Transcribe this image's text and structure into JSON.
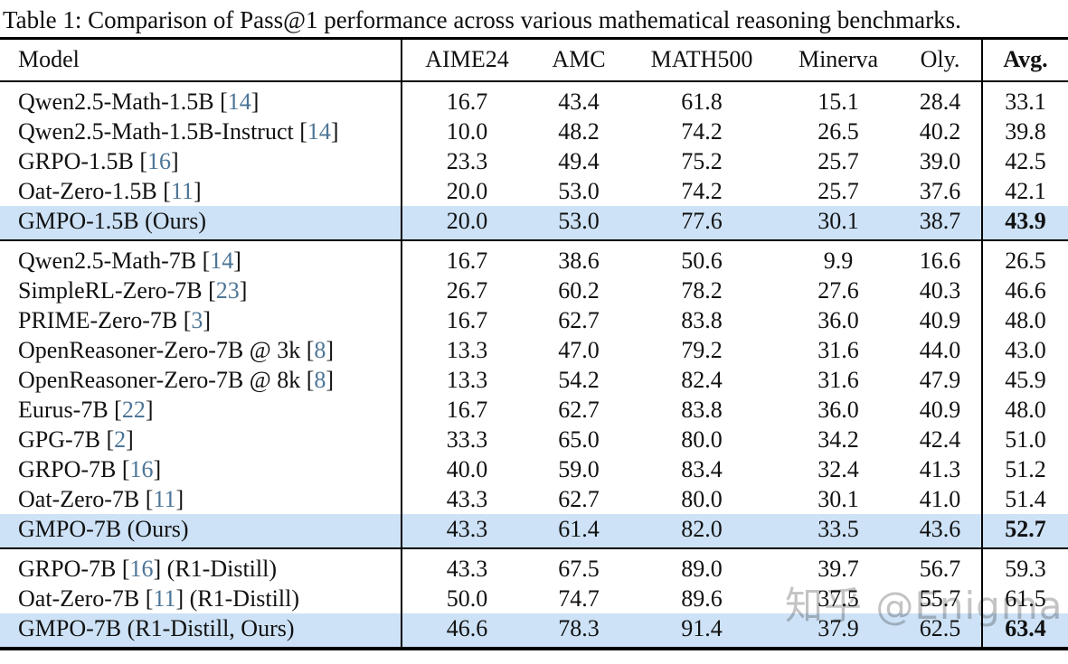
{
  "caption": "Table 1: Comparison of Pass@1 performance across various mathematical reasoning benchmarks.",
  "watermark": {
    "text": "知乎 @Enigma"
  },
  "colors": {
    "highlight_row": "#cde2f6",
    "citation_blue": "#4d7596",
    "rule_black": "#000000",
    "watermark_gray": "#b9b9b9"
  },
  "table": {
    "columns": [
      "Model",
      "AIME24",
      "AMC",
      "MATH500",
      "Minerva",
      "Oly.",
      "Avg."
    ],
    "groups": [
      {
        "rows": [
          {
            "pre": "Qwen2.5-Math-1.5B [",
            "cite": "14",
            "post": "]",
            "values": [
              "16.7",
              "43.4",
              "61.8",
              "15.1",
              "28.4"
            ],
            "avg": "33.1",
            "highlight": false
          },
          {
            "pre": "Qwen2.5-Math-1.5B-Instruct [",
            "cite": "14",
            "post": "]",
            "values": [
              "10.0",
              "48.2",
              "74.2",
              "26.5",
              "40.2"
            ],
            "avg": "39.8",
            "highlight": false
          },
          {
            "pre": "GRPO-1.5B [",
            "cite": "16",
            "post": "]",
            "values": [
              "23.3",
              "49.4",
              "75.2",
              "25.7",
              "39.0"
            ],
            "avg": "42.5",
            "highlight": false
          },
          {
            "pre": "Oat-Zero-1.5B [",
            "cite": "11",
            "post": "]",
            "values": [
              "20.0",
              "53.0",
              "74.2",
              "25.7",
              "37.6"
            ],
            "avg": "42.1",
            "highlight": false
          },
          {
            "pre": "GMPO-1.5B (Ours)",
            "cite": "",
            "post": "",
            "values": [
              "20.0",
              "53.0",
              "77.6",
              "30.1",
              "38.7"
            ],
            "avg": "43.9",
            "highlight": true
          }
        ]
      },
      {
        "rows": [
          {
            "pre": "Qwen2.5-Math-7B [",
            "cite": "14",
            "post": "]",
            "values": [
              "16.7",
              "38.6",
              "50.6",
              "9.9",
              "16.6"
            ],
            "avg": "26.5",
            "highlight": false
          },
          {
            "pre": "SimpleRL-Zero-7B [",
            "cite": "23",
            "post": "]",
            "values": [
              "26.7",
              "60.2",
              "78.2",
              "27.6",
              "40.3"
            ],
            "avg": "46.6",
            "highlight": false
          },
          {
            "pre": "PRIME-Zero-7B [",
            "cite": "3",
            "post": "]",
            "values": [
              "16.7",
              "62.7",
              "83.8",
              "36.0",
              "40.9"
            ],
            "avg": "48.0",
            "highlight": false
          },
          {
            "pre": "OpenReasoner-Zero-7B @ 3k [",
            "cite": "8",
            "post": "]",
            "values": [
              "13.3",
              "47.0",
              "79.2",
              "31.6",
              "44.0"
            ],
            "avg": "43.0",
            "highlight": false
          },
          {
            "pre": "OpenReasoner-Zero-7B @ 8k [",
            "cite": "8",
            "post": "]",
            "values": [
              "13.3",
              "54.2",
              "82.4",
              "31.6",
              "47.9"
            ],
            "avg": "45.9",
            "highlight": false
          },
          {
            "pre": "Eurus-7B [",
            "cite": "22",
            "post": "]",
            "values": [
              "16.7",
              "62.7",
              "83.8",
              "36.0",
              "40.9"
            ],
            "avg": "48.0",
            "highlight": false
          },
          {
            "pre": "GPG-7B [",
            "cite": "2",
            "post": "]",
            "values": [
              "33.3",
              "65.0",
              "80.0",
              "34.2",
              "42.4"
            ],
            "avg": "51.0",
            "highlight": false
          },
          {
            "pre": "GRPO-7B [",
            "cite": "16",
            "post": "]",
            "values": [
              "40.0",
              "59.0",
              "83.4",
              "32.4",
              "41.3"
            ],
            "avg": "51.2",
            "highlight": false
          },
          {
            "pre": "Oat-Zero-7B [",
            "cite": "11",
            "post": "]",
            "values": [
              "43.3",
              "62.7",
              "80.0",
              "30.1",
              "41.0"
            ],
            "avg": "51.4",
            "highlight": false
          },
          {
            "pre": "GMPO-7B (Ours)",
            "cite": "",
            "post": "",
            "values": [
              "43.3",
              "61.4",
              "82.0",
              "33.5",
              "43.6"
            ],
            "avg": "52.7",
            "highlight": true
          }
        ]
      },
      {
        "rows": [
          {
            "pre": "GRPO-7B [",
            "cite": "16",
            "post": "] (R1-Distill)",
            "values": [
              "43.3",
              "67.5",
              "89.0",
              "39.7",
              "56.7"
            ],
            "avg": "59.3",
            "highlight": false
          },
          {
            "pre": "Oat-Zero-7B [",
            "cite": "11",
            "post": "] (R1-Distill)",
            "values": [
              "50.0",
              "74.7",
              "89.6",
              "37.5",
              "55.7"
            ],
            "avg": "61.5",
            "highlight": false
          },
          {
            "pre": "GMPO-7B (R1-Distill, Ours)",
            "cite": "",
            "post": "",
            "values": [
              "46.6",
              "78.3",
              "91.4",
              "37.9",
              "62.5"
            ],
            "avg": "63.4",
            "highlight": true
          }
        ]
      }
    ]
  }
}
